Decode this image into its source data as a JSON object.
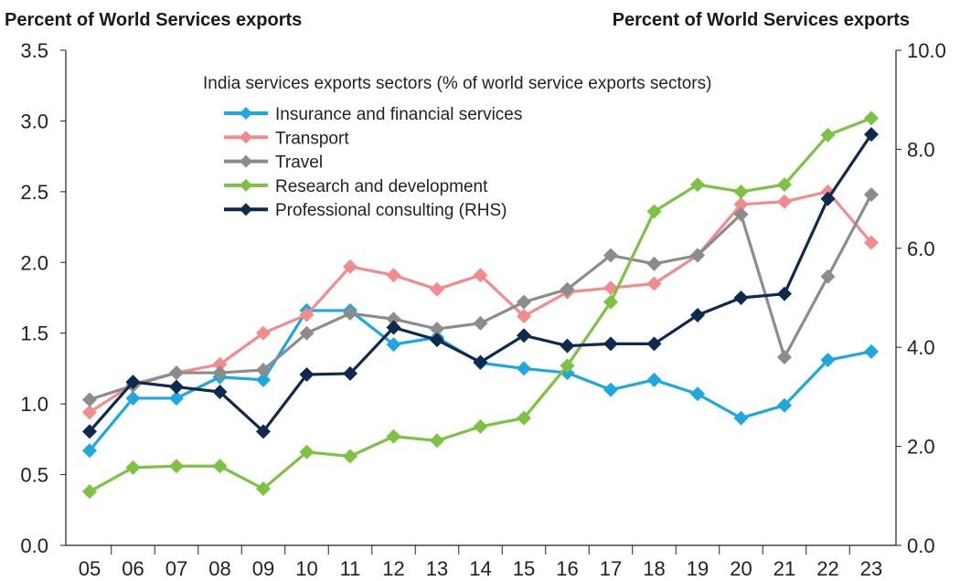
{
  "chart_data": {
    "type": "line",
    "left_axis_label": "Percent of World Services exports",
    "right_axis_label": "Percent of World Services exports",
    "legend_title": "India services exports sectors (% of world service exports sectors)",
    "categories": [
      "05",
      "06",
      "07",
      "08",
      "09",
      "10",
      "11",
      "12",
      "13",
      "14",
      "15",
      "16",
      "17",
      "18",
      "19",
      "20",
      "21",
      "22",
      "23"
    ],
    "ylim_left": [
      0,
      3.5
    ],
    "ylim_right": [
      0,
      10
    ],
    "left_ticks": [
      "0.0",
      "0.5",
      "1.0",
      "1.5",
      "2.0",
      "2.5",
      "3.0",
      "3.5"
    ],
    "right_ticks": [
      "0.0",
      "2.0",
      "4.0",
      "6.0",
      "8.0",
      "10.0"
    ],
    "series": [
      {
        "name": "Insurance and financial services",
        "color": "#1ea7e1",
        "axis": "left",
        "values": [
          0.67,
          1.04,
          1.04,
          1.19,
          1.17,
          1.66,
          1.66,
          1.42,
          1.47,
          1.29,
          1.25,
          1.22,
          1.1,
          1.17,
          1.07,
          0.9,
          0.99,
          1.31,
          1.37
        ]
      },
      {
        "name": "Transport",
        "color": "#f28b8e",
        "axis": "left",
        "values": [
          0.94,
          1.14,
          1.22,
          1.28,
          1.5,
          1.63,
          1.97,
          1.91,
          1.81,
          1.91,
          1.62,
          1.79,
          1.82,
          1.85,
          2.05,
          2.41,
          2.43,
          2.5,
          2.14
        ]
      },
      {
        "name": "Travel",
        "color": "#8c8c8c",
        "axis": "left",
        "values": [
          1.03,
          1.13,
          1.22,
          1.22,
          1.24,
          1.5,
          1.64,
          1.6,
          1.53,
          1.57,
          1.72,
          1.81,
          2.05,
          1.99,
          2.05,
          2.34,
          1.33,
          1.9,
          2.48
        ]
      },
      {
        "name": "Research and development",
        "color": "#7dc242",
        "axis": "left",
        "values": [
          0.38,
          0.55,
          0.56,
          0.56,
          0.4,
          0.66,
          0.63,
          0.77,
          0.74,
          0.84,
          0.9,
          1.27,
          1.72,
          2.36,
          2.55,
          2.5,
          2.55,
          2.9,
          3.02
        ]
      },
      {
        "name": "Professional consulting (RHS)",
        "color": "#0f2a4f",
        "axis": "right",
        "values": [
          2.3,
          3.3,
          3.2,
          3.1,
          2.3,
          3.45,
          3.47,
          4.4,
          4.15,
          3.7,
          4.24,
          4.03,
          4.07,
          4.07,
          4.65,
          5.0,
          5.08,
          7.0,
          8.3
        ]
      }
    ]
  }
}
